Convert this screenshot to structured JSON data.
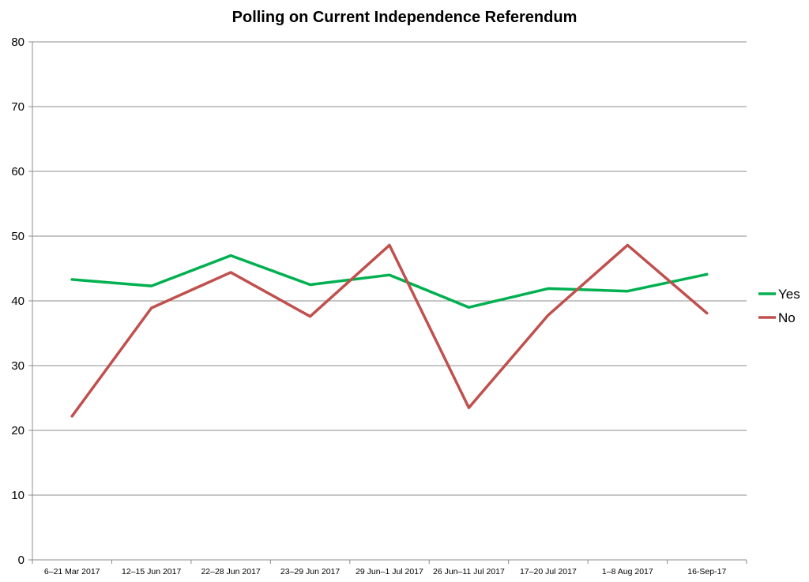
{
  "chart_data": {
    "type": "line",
    "title": "Polling on Current Independence Referendum",
    "xlabel": "",
    "ylabel": "",
    "categories": [
      "6–21 Mar 2017",
      "12–15 Jun 2017",
      "22–28 Jun 2017",
      "23–29 Jun 2017",
      "29 Jun–1 Jul 2017",
      "26 Jun–11 Jul 2017",
      "17–20 Jul 2017",
      "1–8 Aug 2017",
      "16-Sep-17"
    ],
    "ylim": [
      0,
      80
    ],
    "yticks": [
      0,
      10,
      20,
      30,
      40,
      50,
      60,
      70,
      80
    ],
    "grid": true,
    "legend_position": "right",
    "series": [
      {
        "name": "Yes",
        "color": "#00b050",
        "values": [
          43.3,
          42.3,
          47.0,
          42.5,
          44.0,
          39.0,
          41.9,
          41.5,
          44.1
        ]
      },
      {
        "name": "No",
        "color": "#c0504d",
        "values": [
          22.2,
          38.9,
          44.4,
          37.6,
          48.6,
          23.5,
          37.8,
          48.6,
          38.1
        ]
      }
    ]
  }
}
